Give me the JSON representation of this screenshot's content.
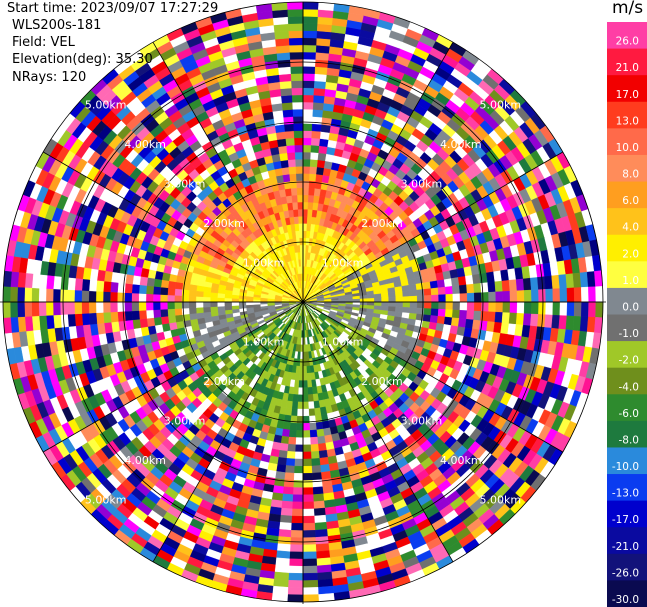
{
  "header": {
    "start_time": "Start time: 2023/09/07 17:27:29",
    "instrument": "WLS200s-181",
    "field": "Field: VEL",
    "elevation": "Elevation(deg): 35.30",
    "nrays": "NRays: 120"
  },
  "colorbar": {
    "unit": "m/s",
    "entries": [
      {
        "label": "26.0",
        "color": "#ff3ea5"
      },
      {
        "label": "21.0",
        "color": "#ff1a40"
      },
      {
        "label": "17.0",
        "color": "#f20000"
      },
      {
        "label": "13.0",
        "color": "#ff3c1e"
      },
      {
        "label": "10.0",
        "color": "#ff6a4a"
      },
      {
        "label": "8.0",
        "color": "#ff8c5a"
      },
      {
        "label": "6.0",
        "color": "#ff9e1f"
      },
      {
        "label": "4.0",
        "color": "#ffc21a"
      },
      {
        "label": "2.0",
        "color": "#ffef00"
      },
      {
        "label": "1.0",
        "color": "#ffff40"
      },
      {
        "label": "0.0",
        "color": "#808890"
      },
      {
        "label": "-1.0",
        "color": "#707070"
      },
      {
        "label": "-2.0",
        "color": "#a0c828"
      },
      {
        "label": "-4.0",
        "color": "#6f8f1c"
      },
      {
        "label": "-6.0",
        "color": "#2e8b2e"
      },
      {
        "label": "-8.0",
        "color": "#1e7a3e"
      },
      {
        "label": "-10.0",
        "color": "#2a8adc"
      },
      {
        "label": "-13.0",
        "color": "#0a3cf0"
      },
      {
        "label": "-17.0",
        "color": "#0000cd"
      },
      {
        "label": "-21.0",
        "color": "#0a0aa0"
      },
      {
        "label": "-26.0",
        "color": "#12127a"
      },
      {
        "label": "-30.0",
        "color": "#0a0a50"
      }
    ]
  },
  "range_rings": [
    "1.00km",
    "2.00km",
    "3.00km",
    "4.00km",
    "5.00km"
  ]
}
